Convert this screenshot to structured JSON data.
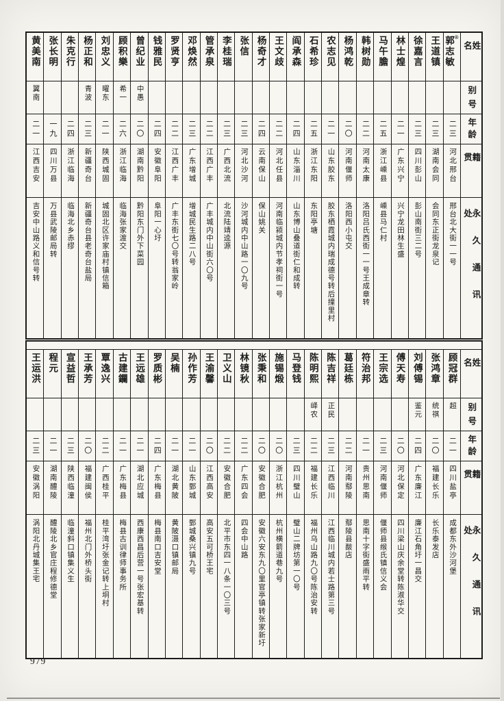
{
  "page_number": "979",
  "headers": {
    "name": "姓名",
    "alias": "别号",
    "age": "年龄",
    "native": "籍贯",
    "address": "永久通讯处"
  },
  "tables": [
    {
      "people": [
        {
          "name": "郭志敏",
          "mark": "⑧",
          "alias": "",
          "age": "二三",
          "native": "河北邢台",
          "address": "邢台北大街一一号"
        },
        {
          "name": "王道镇",
          "mark": "",
          "alias": "",
          "age": "二三",
          "native": "湖南会同",
          "address": "会同东正街龙泉记"
        },
        {
          "name": "徐嘉言",
          "mark": "",
          "alias": "",
          "age": "二三",
          "native": "四川彭山",
          "address": "彭山南街三二号"
        },
        {
          "name": "林士煌",
          "mark": "",
          "alias": "",
          "age": "二一",
          "native": "广东兴宁",
          "address": "兴宁龙田林生盛"
        },
        {
          "name": "马午膽",
          "mark": "",
          "alias": "",
          "age": "二五",
          "native": "浙江嵊县",
          "address": "嵊县马仁村"
        },
        {
          "name": "韩树勋",
          "mark": "",
          "alias": "",
          "age": "二二",
          "native": "河南太康",
          "address": "洛阳吕氏西街一一号王成章转"
        },
        {
          "name": "杨鸿乾",
          "mark": "",
          "alias": "",
          "age": "二〇",
          "native": "河南偃师",
          "address": "洛阳西小屯交"
        },
        {
          "name": "农志见",
          "mark": "",
          "alias": "",
          "age": "二一",
          "native": "山东胶东",
          "address": "胶东栖霞城内瑞成德号转后撞里村"
        },
        {
          "name": "石希珍",
          "mark": "",
          "alias": "",
          "age": "二五",
          "native": "浙江东阳",
          "address": "东阳亭塘"
        },
        {
          "name": "阎承森",
          "mark": "",
          "alias": "",
          "age": "二四",
          "native": "山东淄川",
          "address": "山东博山叠道街仁和成转"
        },
        {
          "name": "王文歧",
          "mark": "",
          "alias": "",
          "age": "二二",
          "native": "河北任县",
          "address": "河南临颍城内节孝祠街一号"
        },
        {
          "name": "杨奇才",
          "mark": "",
          "alias": "",
          "age": "二四",
          "native": "云南保山",
          "address": "保山姚关"
        },
        {
          "name": "张信",
          "mark": "",
          "alias": "",
          "age": "二三",
          "native": "河北沙河",
          "address": "沙河城内中山路一〇九号"
        },
        {
          "name": "李桂瑞",
          "mark": "",
          "alias": "",
          "age": "二三",
          "native": "广西北流",
          "address": "北流陆靖逵源"
        },
        {
          "name": "管承泉",
          "mark": "",
          "alias": "",
          "age": "二二",
          "native": "江西广丰",
          "address": "广丰城内中山街六〇号"
        },
        {
          "name": "邓焕然",
          "mark": "",
          "alias": "",
          "age": "二三",
          "native": "广东增城",
          "address": "增城民生路二八号"
        },
        {
          "name": "罗贤亨",
          "mark": "",
          "alias": "",
          "age": "二二",
          "native": "江西广丰",
          "address": "广丰东街七〇号转翁家岭"
        },
        {
          "name": "钱雅民",
          "mark": "",
          "alias": "",
          "age": "二四",
          "native": "安徽阜阳",
          "address": "阜阳一心圩"
        },
        {
          "name": "曾纪业",
          "mark": "",
          "alias": "中愚",
          "age": "二〇",
          "native": "湖南黔阳",
          "address": "黔阳东门外下菜园"
        },
        {
          "name": "顾积樂",
          "mark": "",
          "alias": "希一",
          "age": "二六",
          "native": "浙江临海",
          "address": "临海张家渡交"
        },
        {
          "name": "刘忠义",
          "mark": "",
          "alias": "曜东",
          "age": "二一",
          "native": "陕西城固",
          "address": "城固北区许家庙村镇信箱"
        },
        {
          "name": "杨正和",
          "mark": "",
          "alias": "青波",
          "age": "二三",
          "native": "新疆奇台",
          "address": "新疆奇台县老奇台盐局"
        },
        {
          "name": "朱克行",
          "mark": "",
          "alias": "",
          "age": "二四",
          "native": "浙江临海",
          "address": "临海北乡赤缪"
        },
        {
          "name": "张长明",
          "mark": "",
          "alias": "",
          "age": "一九",
          "native": "四川万县",
          "address": "万县武陵邮局转"
        },
        {
          "name": "黄美南",
          "mark": "",
          "alias": "翼南",
          "age": "二一",
          "native": "江西吉安",
          "address": "吉安中山路义和信号转"
        }
      ]
    },
    {
      "people": [
        {
          "name": "顾冠群",
          "mark": "",
          "alias": "超",
          "age": "二一",
          "native": "四川盐亭",
          "address": "成都东外沙河堡"
        },
        {
          "name": "张鸿章",
          "mark": "",
          "alias": "统祺",
          "age": "二〇",
          "native": "福建长乐",
          "address": "长乐泰发店"
        },
        {
          "name": "刘傅锡",
          "mark": "",
          "alias": "鉴元",
          "age": "二四",
          "native": "广东廉江",
          "address": "廉江石角圩一昌交"
        },
        {
          "name": "傅天寿",
          "mark": "",
          "alias": "",
          "age": "二〇",
          "native": "河北保定",
          "address": "四川梁山庆余堂转陈淑华交"
        },
        {
          "name": "王宗选",
          "mark": "",
          "alias": "",
          "age": "二三",
          "native": "河南偃师",
          "address": "偃师县缑氏镇信义会"
        },
        {
          "name": "符治邦",
          "mark": "",
          "alias": "",
          "age": "二一",
          "native": "贵州思南",
          "address": "思南十字街盛雨平转"
        },
        {
          "name": "葛廷栋",
          "mark": "",
          "alias": "",
          "age": "二二",
          "native": "河南鄢陵",
          "address": "鄢陵县酦店"
        },
        {
          "name": "陈吉祥",
          "mark": "",
          "alias": "正民",
          "age": "二三",
          "native": "江西临川",
          "address": "江西临川城内若士路第三号"
        },
        {
          "name": "陈明熙",
          "mark": "",
          "alias": "峄农",
          "age": "二二",
          "native": "福建长乐",
          "address": "福州乌山路九〇号陈治安转"
        },
        {
          "name": "马登钱",
          "mark": "",
          "alias": "",
          "age": "二三",
          "native": "四川璧山",
          "address": "璧山二牌坊第一〇号"
        },
        {
          "name": "施锡煅",
          "mark": "",
          "alias": "",
          "age": "二〇",
          "native": "浙江杭州",
          "address": "杭州横箭道巷九号"
        },
        {
          "name": "张秉和",
          "mark": "",
          "alias": "",
          "age": "二〇",
          "native": "安徽合肥",
          "address": "安徽六安东九〇里官亭镇转张家新圩"
        },
        {
          "name": "林镜秋",
          "mark": "",
          "alias": "",
          "age": "二二",
          "native": "广东四会",
          "address": "四会中山路"
        },
        {
          "name": "卫义山",
          "mark": "",
          "alias": "",
          "age": "二二",
          "native": "安徽合肥",
          "address": "北平市东四一八条一〇三号"
        },
        {
          "name": "王渝馨",
          "mark": "",
          "alias": "",
          "age": "二〇",
          "native": "江西高安",
          "address": "高安五可桥王宅"
        },
        {
          "name": "孙作芳",
          "mark": "",
          "alias": "",
          "age": "二一",
          "native": "山东鄄城",
          "address": "鄄城桑兴镇九号"
        },
        {
          "name": "吴楠",
          "mark": "",
          "alias": "",
          "age": "二一",
          "native": "湖北黄陂",
          "address": "黄陂滠口镇邮局"
        },
        {
          "name": "罗质彬",
          "mark": "",
          "alias": "",
          "age": "二四",
          "native": "广东梅县",
          "address": "梅县南口吉安堂"
        },
        {
          "name": "王远雄",
          "mark": "",
          "alias": "",
          "age": "二一",
          "native": "湖北应城",
          "address": "西康西昌后营一号张宏基转"
        },
        {
          "name": "古建鑭",
          "mark": "",
          "alias": "",
          "age": "二一",
          "native": "广东梅县",
          "address": "梅县古训律师事务所"
        },
        {
          "name": "覃逸兴",
          "mark": "",
          "alias": "",
          "age": "二二",
          "native": "广西桂平",
          "address": "桂平湾圩张金记转上垌村"
        },
        {
          "name": "王承芳",
          "mark": "",
          "alias": "",
          "age": "二〇",
          "native": "福建闽侯",
          "address": "福州北门外桥头街"
        },
        {
          "name": "宣益哲",
          "mark": "",
          "alias": "",
          "age": "二三",
          "native": "陕西临潼",
          "address": "临潼斜口镇集义生"
        },
        {
          "name": "程元",
          "mark": "",
          "alias": "",
          "age": "二一",
          "native": "湖南醴陵",
          "address": "醴陵北乡官庄程修德堂"
        },
        {
          "name": "王运洪",
          "mark": "",
          "alias": "",
          "age": "二三",
          "native": "安徽涡阳",
          "address": "涡阳北丹城集王宅"
        }
      ]
    }
  ]
}
